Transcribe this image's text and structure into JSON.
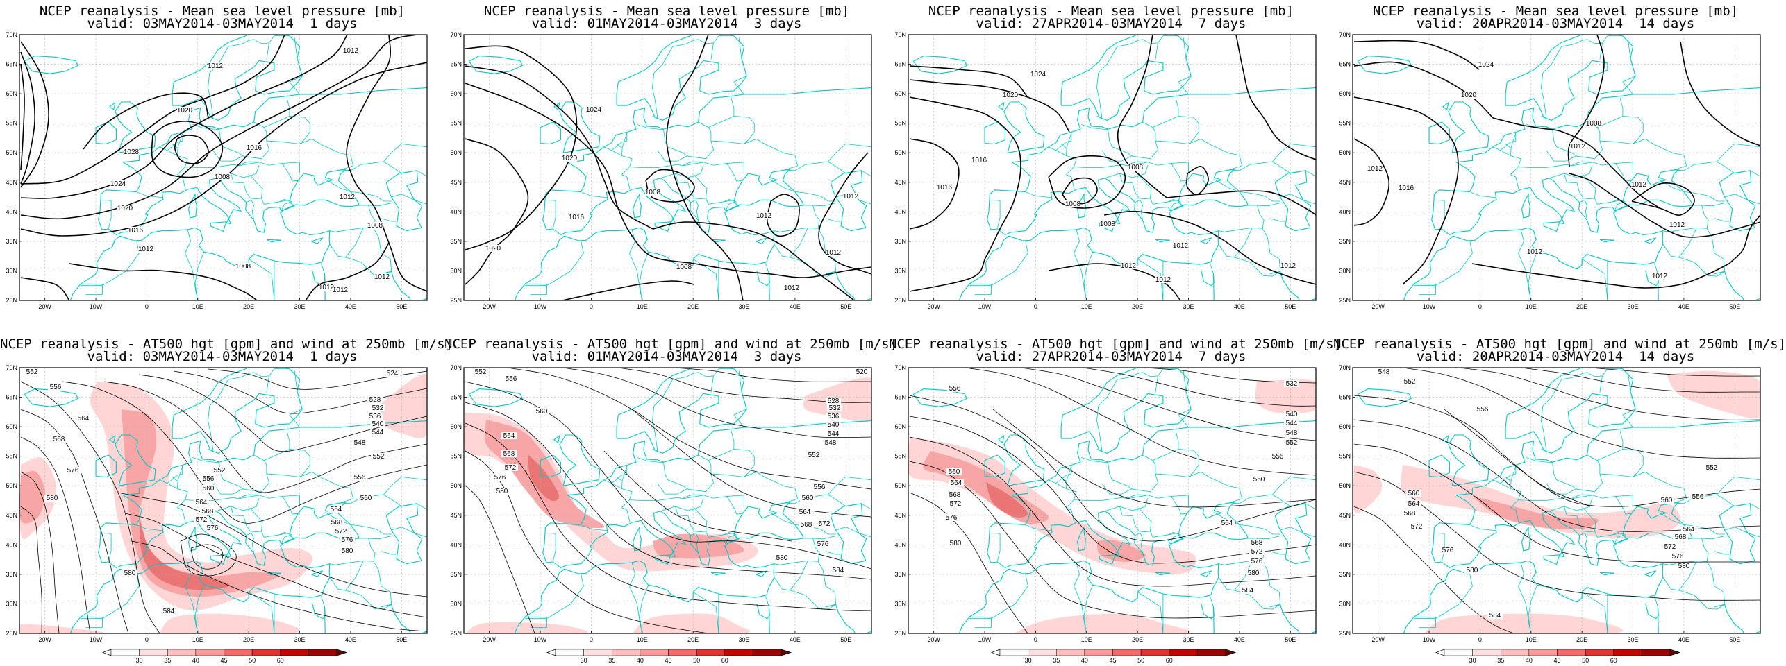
{
  "colors": {
    "coast": "#00c8c8",
    "contour": "#000000",
    "jet_light": "#ffd0d0",
    "jet_mid": "#f6a0a0",
    "jet_strong": "#e87070",
    "background": "#ffffff"
  },
  "axes": {
    "lat_labels": [
      "70N",
      "65N",
      "60N",
      "55N",
      "50N",
      "45N",
      "40N",
      "35N",
      "30N",
      "25N"
    ],
    "lon_labels": [
      "20W",
      "10W",
      "0",
      "10E",
      "20E",
      "30E",
      "40E",
      "50E"
    ]
  },
  "colorbar": {
    "ticks": [
      "30",
      "35",
      "40",
      "45",
      "50",
      "60"
    ]
  },
  "panels": [
    {
      "id": "slp-1d",
      "title": "NCEP reanalysis - Mean sea level pressure [mb]",
      "subtitle": "valid: 03MAY2014-03MAY2014  1 days",
      "labels": [
        "1012",
        "1012",
        "1020",
        "1028",
        "1016",
        "1024",
        "1008",
        "1020",
        "1016",
        "1012",
        "1012",
        "1008",
        "1008",
        "1012",
        "1012",
        "1012"
      ]
    },
    {
      "id": "slp-3d",
      "title": "NCEP reanalysis - Mean sea level pressure [mb]",
      "subtitle": "valid: 01MAY2014-03MAY2014  3 days",
      "labels": [
        "1024",
        "1020",
        "1016",
        "1008",
        "1012",
        "1012",
        "1020",
        "1012",
        "1008",
        "1012"
      ]
    },
    {
      "id": "slp-7d",
      "title": "NCEP reanalysis - Mean sea level pressure [mb]",
      "subtitle": "valid: 27APR2014-03MAY2014  7 days",
      "labels": [
        "1024",
        "1020",
        "1016",
        "1008",
        "1008",
        "1016",
        "1008",
        "1012",
        "1012",
        "1012",
        "1012"
      ]
    },
    {
      "id": "slp-14d",
      "title": "NCEP reanalysis - Mean sea level pressure [mb]",
      "subtitle": "valid: 20APR2014-03MAY2014  14 days",
      "labels": [
        "1024",
        "1020",
        "1008",
        "1012",
        "1016",
        "1012",
        "1012",
        "1012",
        "1012",
        "1012"
      ]
    },
    {
      "id": "z500-1d",
      "title": "NCEP reanalysis - AT500 hgt [gpm] and wind at 250mb [m/s]",
      "subtitle": "valid: 03MAY2014-03MAY2014  1 days",
      "labels": [
        "552",
        "556",
        "564",
        "568",
        "576",
        "580",
        "524",
        "528",
        "532",
        "536",
        "540",
        "544",
        "548",
        "552",
        "556",
        "560",
        "564",
        "568",
        "572",
        "576",
        "580",
        "552",
        "556",
        "560",
        "564",
        "568",
        "572",
        "576",
        "580",
        "584"
      ]
    },
    {
      "id": "z500-3d",
      "title": "NCEP reanalysis - AT500 hgt [gpm] and wind at 250mb [m/s]",
      "subtitle": "valid: 01MAY2014-03MAY2014  3 days",
      "labels": [
        "552",
        "556",
        "560",
        "564",
        "568",
        "572",
        "576",
        "580",
        "520",
        "528",
        "532",
        "536",
        "540",
        "544",
        "548",
        "552",
        "556",
        "560",
        "564",
        "568",
        "572",
        "576",
        "580",
        "584"
      ]
    },
    {
      "id": "z500-7d",
      "title": "NCEP reanalysis - AT500 hgt [gpm] and wind at 250mb [m/s]",
      "subtitle": "valid: 27APR2014-03MAY2014  7 days",
      "labels": [
        "556",
        "560",
        "564",
        "568",
        "572",
        "576",
        "580",
        "532",
        "540",
        "544",
        "548",
        "552",
        "556",
        "560",
        "564",
        "568",
        "572",
        "576",
        "580",
        "584"
      ]
    },
    {
      "id": "z500-14d",
      "title": "NCEP reanalysis - AT500 hgt [gpm] and wind at 250mb [m/s]",
      "subtitle": "valid: 20APR2014-03MAY2014  14 days",
      "labels": [
        "548",
        "552",
        "556",
        "560",
        "564",
        "568",
        "572",
        "576",
        "580",
        "584",
        "552",
        "556",
        "560",
        "564",
        "568",
        "572",
        "576",
        "580"
      ]
    }
  ]
}
